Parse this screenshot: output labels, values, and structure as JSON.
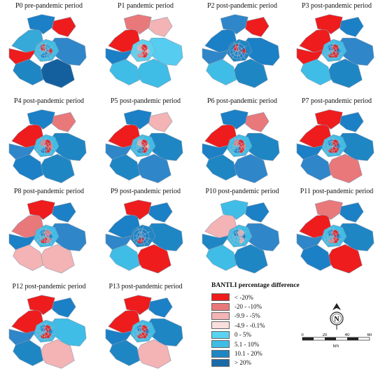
{
  "panels": [
    {
      "title": "P0 pre-pandemic period",
      "colors": [
        "#35a9d8",
        "#1b80c6",
        "#ee1c1c",
        "#2f86c9",
        "#14609f",
        "#1f86c4",
        "#ee1c1c",
        "#3fbde6"
      ]
    },
    {
      "title": "P1 pandemic period",
      "colors": [
        "#ee1c1c",
        "#e9787a",
        "#f4b3b4",
        "#56ccf0",
        "#3fbde6",
        "#3fbde6",
        "#1b80c6",
        "#5ad3f1"
      ]
    },
    {
      "title": "P2 post-pandemic period",
      "colors": [
        "#1b80c6",
        "#2f86c9",
        "#ee1c1c",
        "#1b80c6",
        "#1f86c4",
        "#3fbde6",
        "#2f86c9",
        "#1f86c4"
      ]
    },
    {
      "title": "P3 post-pandemic period",
      "colors": [
        "#ee1c1c",
        "#ee1c1c",
        "#1b80c6",
        "#2f86c9",
        "#1f86c4",
        "#3fbde6",
        "#ee1c1c",
        "#3fbde6"
      ]
    },
    {
      "title": "P4 post-pandemic period",
      "colors": [
        "#ee1c1c",
        "#1b80c6",
        "#e9787a",
        "#1f86c4",
        "#1f86c4",
        "#1b80c6",
        "#2f86c9",
        "#3fbde6"
      ]
    },
    {
      "title": "P5 post-pandemic period",
      "colors": [
        "#ee1c1c",
        "#1b80c6",
        "#f4b3b4",
        "#1f86c4",
        "#2f86c9",
        "#1f86c4",
        "#2f86c9",
        "#3fbde6"
      ]
    },
    {
      "title": "P6 post-pandemic period",
      "colors": [
        "#ee1c1c",
        "#1b80c6",
        "#e9787a",
        "#1f86c4",
        "#2f86c9",
        "#1f86c4",
        "#1b80c6",
        "#3fbde6"
      ]
    },
    {
      "title": "P7 post-pandemic period",
      "colors": [
        "#ee1c1c",
        "#ee1c1c",
        "#1b80c6",
        "#1f86c4",
        "#e9787a",
        "#2f86c9",
        "#1b80c6",
        "#3fbde6"
      ]
    },
    {
      "title": "P8 post-pandemic period",
      "colors": [
        "#e9787a",
        "#ee1c1c",
        "#1b80c6",
        "#2f86c9",
        "#f4b3b4",
        "#f4b3b4",
        "#1b80c6",
        "#3fbde6"
      ]
    },
    {
      "title": "P9 post-pandemic period",
      "colors": [
        "#1b80c6",
        "#ee1c1c",
        "#1b80c6",
        "#1f86c4",
        "#ee1c1c",
        "#3fbde6",
        "#2f86c9",
        "#1f86c4"
      ]
    },
    {
      "title": "P10 post-pandemic period",
      "colors": [
        "#f4b3b4",
        "#3fbde6",
        "#1b80c6",
        "#2f86c9",
        "#1f86c4",
        "#3fbde6",
        "#1f86c4",
        "#3fbde6"
      ]
    },
    {
      "title": "P11 post-pandemic period",
      "colors": [
        "#ee1c1c",
        "#e9787a",
        "#1b80c6",
        "#1f86c4",
        "#ee1c1c",
        "#1b80c6",
        "#2f86c9",
        "#3fbde6"
      ]
    },
    {
      "title": "P12 post-pandemic period",
      "colors": [
        "#ee1c1c",
        "#ee1c1c",
        "#1b80c6",
        "#3fbde6",
        "#f4b3b4",
        "#1f86c4",
        "#2f86c9",
        "#3fbde6"
      ]
    },
    {
      "title": "P13 post-pandemic period",
      "colors": [
        "#ee1c1c",
        "#ee1c1c",
        "#1b80c6",
        "#1f86c4",
        "#f4b3b4",
        "#1f86c4",
        "#1b80c6",
        "#3fbde6"
      ]
    }
  ],
  "legend": {
    "title": "BANTLI percentage difference",
    "items": [
      {
        "label": "< -20%",
        "color": "#ee1c1c"
      },
      {
        "label": "-20 - -10%",
        "color": "#e9787a"
      },
      {
        "label": "-9.9 - -5%",
        "color": "#f4b3b4"
      },
      {
        "label": "-4.9 - -0.1%",
        "color": "#fbdede"
      },
      {
        "label": "0 - 5%",
        "color": "#5ad3f1"
      },
      {
        "label": "5.1 - 10%",
        "color": "#3fbde6"
      },
      {
        "label": "10.1 - 20%",
        "color": "#1f86c4"
      },
      {
        "label": "> 20%",
        "color": "#1b6aa8"
      }
    ]
  },
  "north": {
    "label": "N",
    "icon": "north-arrow-icon"
  },
  "scale": {
    "ticks": [
      "0",
      "20",
      "40",
      "60"
    ],
    "unit": "km"
  }
}
